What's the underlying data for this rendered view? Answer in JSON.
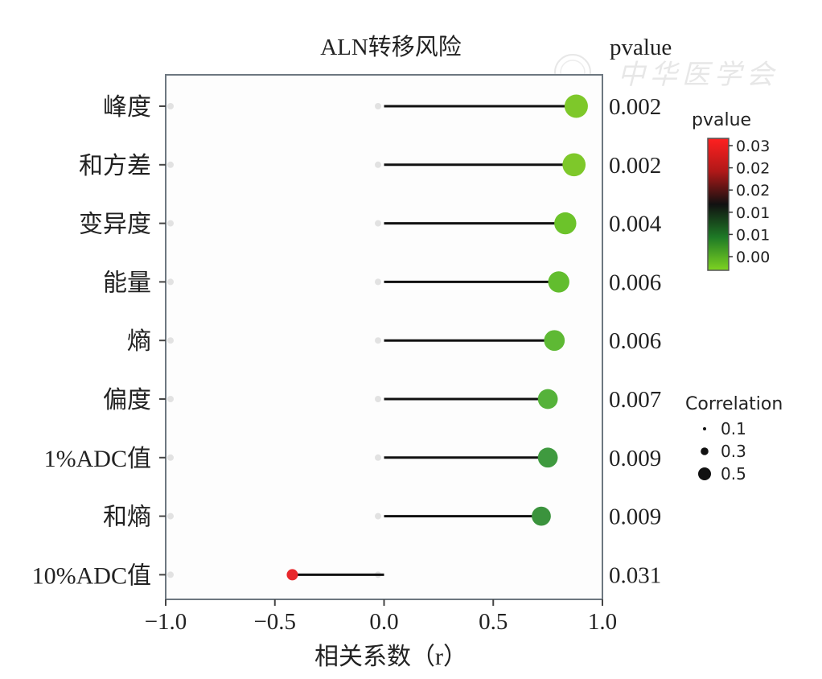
{
  "chart_data": {
    "type": "lollipop",
    "title": "ALN转移风险",
    "xlabel": "相关系数（r）",
    "xlim": [
      -1.0,
      1.0
    ],
    "xticks": [
      "−1.0",
      "−0.5",
      "0.0",
      "0.5",
      "1.0"
    ],
    "xtick_values": [
      -1.0,
      -0.5,
      0.0,
      0.5,
      1.0
    ],
    "pvalue_header": "pvalue",
    "categories": [
      "峰度",
      "和方差",
      "变异度",
      "能量",
      "熵",
      "偏度",
      "1%ADC值",
      "和熵",
      "10%ADC值"
    ],
    "values": [
      0.88,
      0.87,
      0.83,
      0.8,
      0.78,
      0.75,
      0.75,
      0.72,
      -0.42
    ],
    "pvalues": [
      "0.002",
      "0.002",
      "0.004",
      "0.006",
      "0.006",
      "0.007",
      "0.009",
      "0.009",
      "0.031"
    ],
    "point_colors": [
      "#7ec82a",
      "#7ec82a",
      "#6cc32a",
      "#62bd2e",
      "#5eb934",
      "#55b23a",
      "#3f9a3f",
      "#3b933d",
      "#e8282c"
    ],
    "legend_colorbar": {
      "title": "pvalue",
      "ticks": [
        "0.03",
        "0.02",
        "0.02",
        "0.01",
        "0.01",
        "0.00"
      ],
      "colors_top_to_bottom": [
        "#ff2020",
        "#b01818",
        "#111111",
        "#1e7a26",
        "#7ed321"
      ]
    },
    "legend_size": {
      "title": "Correlation",
      "labels": [
        "0.1",
        "0.3",
        "0.5"
      ],
      "values": [
        0.1,
        0.3,
        0.5
      ]
    },
    "watermark_text": "中华医学会",
    "grid": false
  }
}
